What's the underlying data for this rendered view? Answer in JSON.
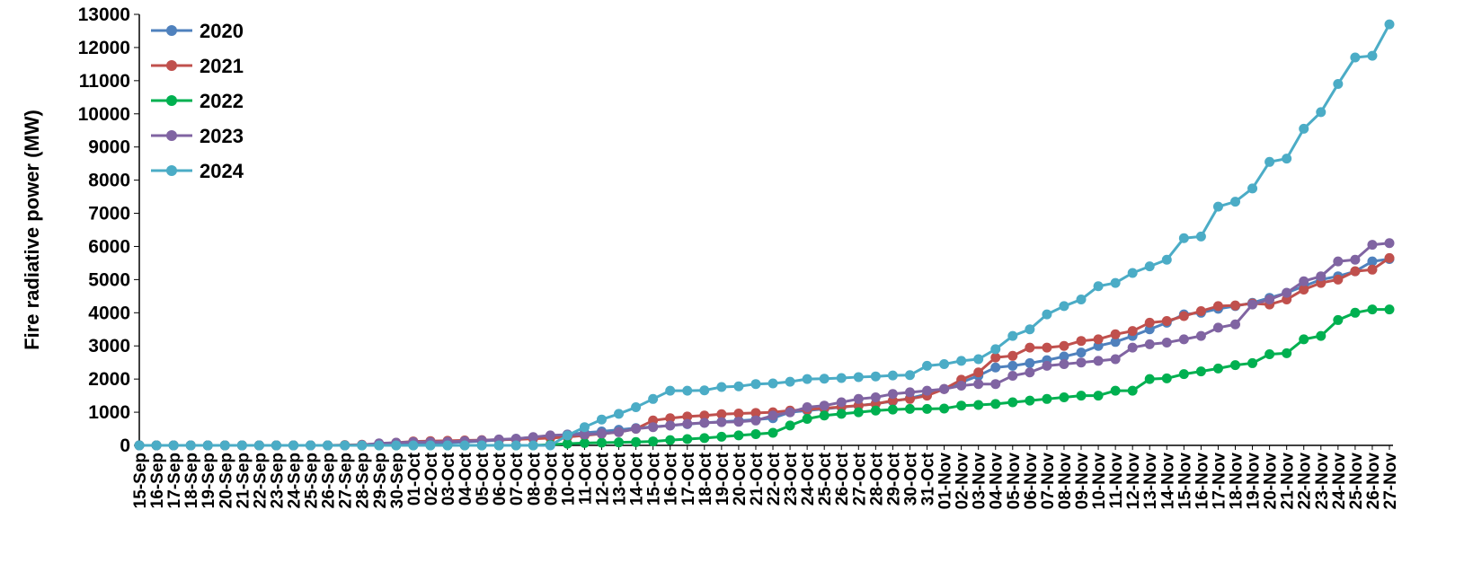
{
  "chart_data": {
    "type": "line",
    "title": "",
    "xlabel": "",
    "ylabel": "Fire radiative power (MW)",
    "ylim": [
      0,
      13000
    ],
    "yticks": [
      0,
      1000,
      2000,
      3000,
      4000,
      5000,
      6000,
      7000,
      8000,
      9000,
      10000,
      11000,
      12000,
      13000
    ],
    "legend_position": "top-left",
    "grid": false,
    "categories": [
      "15-Sep",
      "16-Sep",
      "17-Sep",
      "18-Sep",
      "19-Sep",
      "20-Sep",
      "21-Sep",
      "22-Sep",
      "23-Sep",
      "24-Sep",
      "25-Sep",
      "26-Sep",
      "27-Sep",
      "28-Sep",
      "29-Sep",
      "30-Sep",
      "01-Oct",
      "02-Oct",
      "03-Oct",
      "04-Oct",
      "05-Oct",
      "06-Oct",
      "07-Oct",
      "08-Oct",
      "09-Oct",
      "10-Oct",
      "11-Oct",
      "12-Oct",
      "13-Oct",
      "14-Oct",
      "15-Oct",
      "16-Oct",
      "17-Oct",
      "18-Oct",
      "19-Oct",
      "20-Oct",
      "21-Oct",
      "22-Oct",
      "23-Oct",
      "24-Oct",
      "25-Oct",
      "26-Oct",
      "27-Oct",
      "28-Oct",
      "29-Oct",
      "30-Oct",
      "31-Oct",
      "01-Nov",
      "02-Nov",
      "03-Nov",
      "04-Nov",
      "05-Nov",
      "06-Nov",
      "07-Nov",
      "08-Nov",
      "09-Nov",
      "10-Nov",
      "11-Nov",
      "12-Nov",
      "13-Nov",
      "14-Nov",
      "15-Nov",
      "16-Nov",
      "17-Nov",
      "18-Nov",
      "19-Nov",
      "20-Nov",
      "21-Nov",
      "22-Nov",
      "23-Nov",
      "24-Nov",
      "25-Nov",
      "26-Nov",
      "27-Nov"
    ],
    "series": [
      {
        "name": "2020",
        "color": "#4F81BD",
        "values": [
          0,
          0,
          0,
          0,
          0,
          0,
          0,
          0,
          0,
          0,
          0,
          0,
          0,
          10,
          20,
          30,
          50,
          60,
          80,
          100,
          130,
          160,
          200,
          240,
          280,
          330,
          380,
          420,
          470,
          520,
          560,
          600,
          640,
          680,
          710,
          740,
          780,
          820,
          1000,
          1050,
          1100,
          1150,
          1200,
          1260,
          1330,
          1420,
          1550,
          1700,
          1900,
          2100,
          2350,
          2400,
          2480,
          2570,
          2680,
          2800,
          3000,
          3120,
          3300,
          3500,
          3700,
          3950,
          4000,
          4120,
          4200,
          4300,
          4450,
          4600,
          4800,
          5000,
          5100,
          5250,
          5550,
          5620
        ]
      },
      {
        "name": "2021",
        "color": "#C0504D",
        "values": [
          0,
          0,
          0,
          0,
          0,
          0,
          0,
          0,
          0,
          0,
          0,
          0,
          10,
          20,
          50,
          80,
          120,
          130,
          140,
          150,
          160,
          170,
          180,
          200,
          220,
          250,
          300,
          350,
          400,
          500,
          750,
          820,
          870,
          900,
          940,
          960,
          980,
          1000,
          1050,
          1080,
          1120,
          1160,
          1200,
          1250,
          1350,
          1400,
          1500,
          1700,
          1980,
          2200,
          2650,
          2700,
          2950,
          2950,
          3000,
          3150,
          3200,
          3350,
          3450,
          3700,
          3750,
          3900,
          4050,
          4200,
          4220,
          4280,
          4250,
          4400,
          4700,
          4900,
          5000,
          5250,
          5300,
          5650
        ]
      },
      {
        "name": "2022",
        "color": "#00B050",
        "values": [
          0,
          0,
          0,
          0,
          0,
          0,
          0,
          0,
          0,
          0,
          0,
          0,
          0,
          0,
          0,
          0,
          0,
          0,
          0,
          0,
          0,
          0,
          0,
          0,
          20,
          50,
          70,
          80,
          90,
          100,
          120,
          160,
          190,
          220,
          260,
          300,
          340,
          380,
          600,
          800,
          900,
          950,
          1000,
          1050,
          1080,
          1100,
          1100,
          1110,
          1200,
          1220,
          1250,
          1300,
          1350,
          1400,
          1450,
          1500,
          1500,
          1650,
          1650,
          2000,
          2020,
          2150,
          2230,
          2320,
          2420,
          2480,
          2750,
          2780,
          3200,
          3300,
          3780,
          4000,
          4100,
          4100
        ]
      },
      {
        "name": "2023",
        "color": "#8064A2",
        "values": [
          0,
          0,
          0,
          0,
          0,
          0,
          0,
          0,
          0,
          0,
          0,
          0,
          0,
          10,
          60,
          80,
          100,
          100,
          110,
          130,
          150,
          180,
          200,
          250,
          300,
          320,
          330,
          360,
          400,
          500,
          550,
          600,
          650,
          680,
          700,
          710,
          750,
          900,
          1000,
          1150,
          1200,
          1300,
          1400,
          1450,
          1550,
          1600,
          1650,
          1700,
          1800,
          1850,
          1850,
          2100,
          2200,
          2400,
          2450,
          2500,
          2550,
          2600,
          2950,
          3050,
          3100,
          3200,
          3300,
          3550,
          3650,
          4250,
          4400,
          4600,
          4950,
          5100,
          5550,
          5600,
          6050,
          6100
        ]
      },
      {
        "name": "2024",
        "color": "#4BACC6",
        "values": [
          0,
          0,
          0,
          0,
          0,
          0,
          0,
          0,
          0,
          0,
          0,
          0,
          0,
          0,
          0,
          0,
          0,
          0,
          0,
          0,
          0,
          0,
          0,
          0,
          0,
          300,
          550,
          780,
          950,
          1150,
          1400,
          1650,
          1650,
          1660,
          1760,
          1780,
          1850,
          1870,
          1920,
          2000,
          2010,
          2030,
          2060,
          2080,
          2110,
          2120,
          2400,
          2450,
          2550,
          2600,
          2900,
          3300,
          3500,
          3950,
          4200,
          4400,
          4800,
          4900,
          5200,
          5400,
          5600,
          6250,
          6300,
          7200,
          7350,
          7750,
          8550,
          8650,
          9550,
          10050,
          10900,
          11700,
          11750,
          12700
        ]
      }
    ]
  }
}
